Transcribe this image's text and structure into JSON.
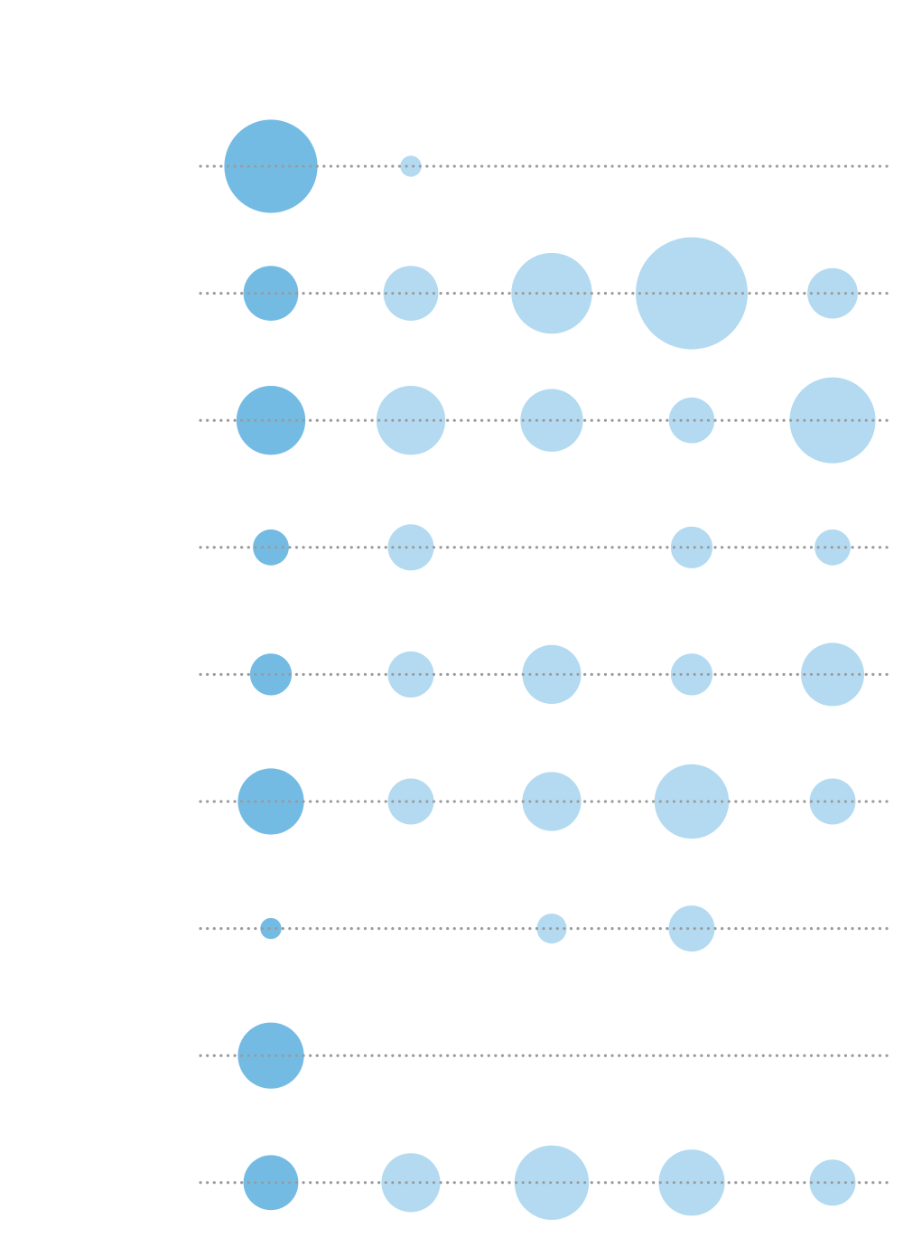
{
  "chart_data": {
    "type": "bubble-matrix",
    "title": "",
    "xlabel": "",
    "ylabel": "",
    "grid": false,
    "legend": "none",
    "colors": {
      "first_column": "#74bbe4",
      "other_columns": "#b3daf0",
      "guide_line": "#9a9a9a"
    },
    "rows": 9,
    "columns": 5,
    "values": [
      [
        2700,
        140,
        0,
        0,
        0
      ],
      [
        940,
        940,
        2030,
        3900,
        790
      ],
      [
        1480,
        1480,
        1220,
        650,
        2300
      ],
      [
        400,
        660,
        0,
        540,
        400
      ],
      [
        540,
        660,
        1080,
        540,
        1240
      ],
      [
        1360,
        660,
        1080,
        1720,
        660
      ],
      [
        140,
        0,
        280,
        660,
        0
      ],
      [
        1360,
        0,
        0,
        0,
        0
      ],
      [
        940,
        1080,
        1720,
        1360,
        660
      ]
    ]
  }
}
